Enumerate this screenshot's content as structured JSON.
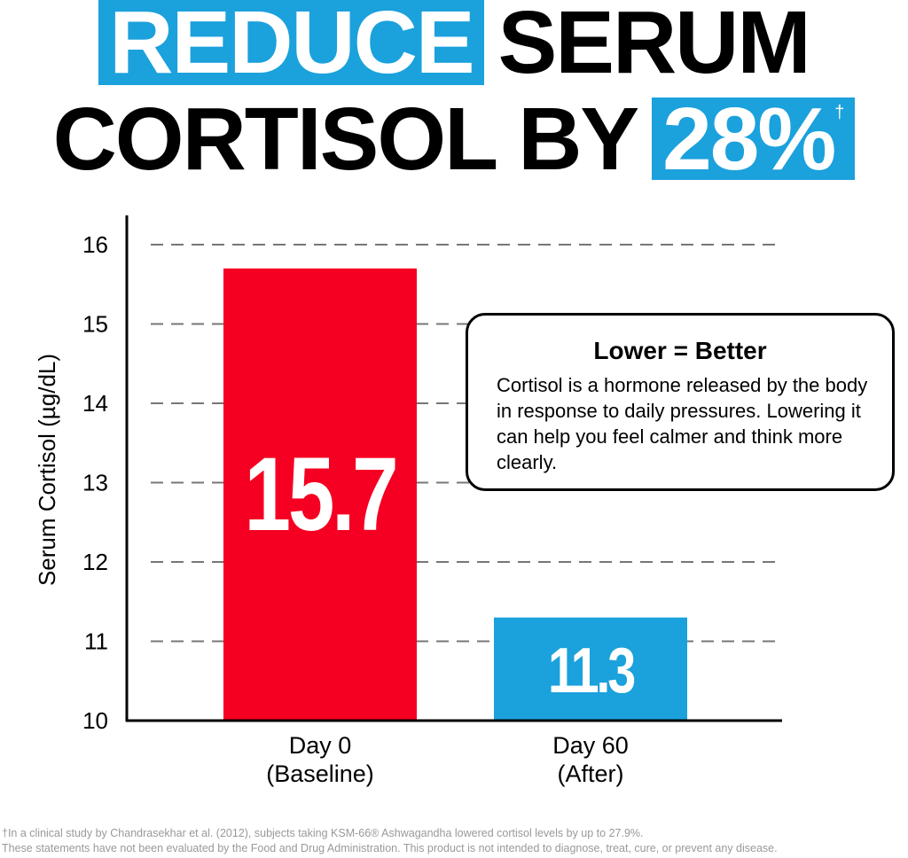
{
  "headline": {
    "line1_highlight": "REDUCE",
    "line1_rest": "SERUM",
    "line2_rest": "CORTISOL BY",
    "line2_highlight": "28%",
    "dagger": "†"
  },
  "colors": {
    "accent_blue": "#1ba1dc",
    "baseline_red": "#f50022",
    "text": "#000000",
    "footnote": "#999999"
  },
  "callout": {
    "title": "Lower = Better",
    "body": "Cortisol is a hormone released by the body in response to daily pressures. Lowering it can help you feel calmer and think more clearly."
  },
  "chart_data": {
    "type": "bar",
    "ylabel": "Serum Cortisol (µg/dL)",
    "xlabel": "",
    "ylim": [
      10,
      16
    ],
    "yticks": [
      "10",
      "11",
      "12",
      "13",
      "14",
      "15",
      "16"
    ],
    "grid": "horizontal dashed",
    "categories": [
      [
        "Day 0",
        "(Baseline)"
      ],
      [
        "Day 60",
        "(After)"
      ]
    ],
    "values": [
      15.7,
      11.3
    ],
    "data_labels": [
      "15.7",
      "11.3"
    ],
    "bar_colors": [
      "#f50022",
      "#1ba1dc"
    ]
  },
  "footnotes": [
    "†In a clinical study by Chandrasekhar et al. (2012), subjects taking KSM-66® Ashwagandha lowered cortisol levels by up to 27.9%.",
    "These statements have not been evaluated by the Food and Drug Administration. This product is not intended to diagnose, treat, cure, or prevent any disease."
  ]
}
